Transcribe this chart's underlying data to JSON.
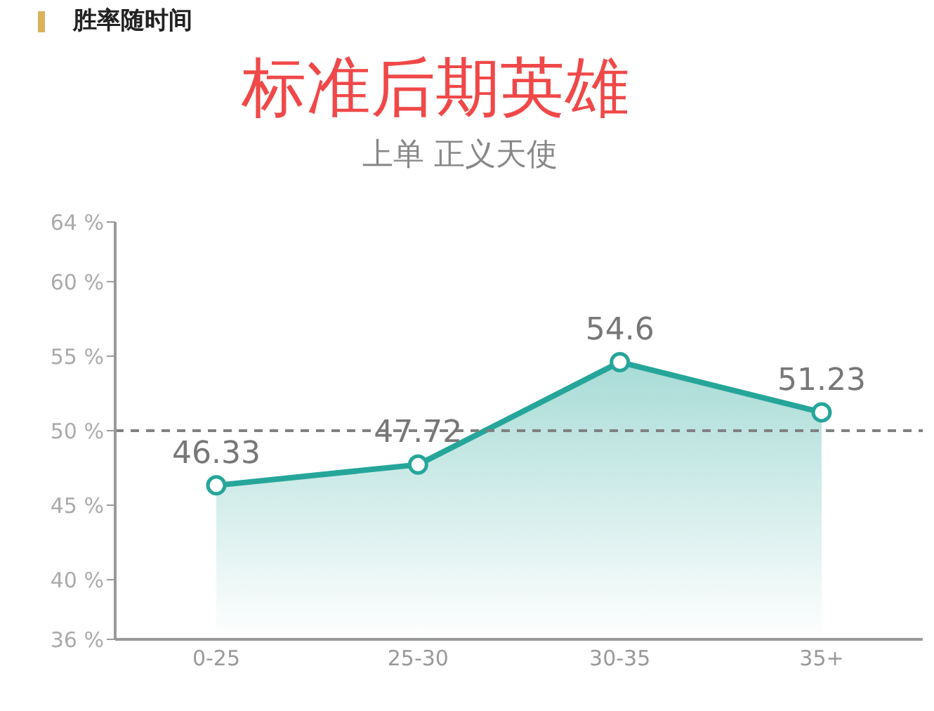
{
  "chart_data": {
    "type": "area",
    "title": "胜率随时间",
    "subtitle": "标准后期英雄",
    "annotations": [
      "上单 正义天使"
    ],
    "categories": [
      "0-25",
      "25-30",
      "30-35",
      "35+"
    ],
    "series": [
      {
        "color": "#26a69a",
        "values": [
          46.33,
          47.72,
          54.6,
          51.23
        ]
      }
    ],
    "ylim": [
      36,
      64
    ],
    "yticks": [
      {
        "value": 36,
        "label": "36 %"
      },
      {
        "value": 40,
        "label": "40 %"
      },
      {
        "value": 45,
        "label": "45 %"
      },
      {
        "value": 50,
        "label": "50 %"
      },
      {
        "value": 55,
        "label": "55 %"
      },
      {
        "value": 60,
        "label": "60 %"
      },
      {
        "value": 64,
        "label": "64 %"
      }
    ],
    "ref_lines": [
      {
        "axis": "y",
        "value": 50,
        "color": "#808080",
        "line_style": "dashed"
      }
    ],
    "data_labels": true,
    "marker": "circle",
    "grid": false,
    "legend": false
  }
}
